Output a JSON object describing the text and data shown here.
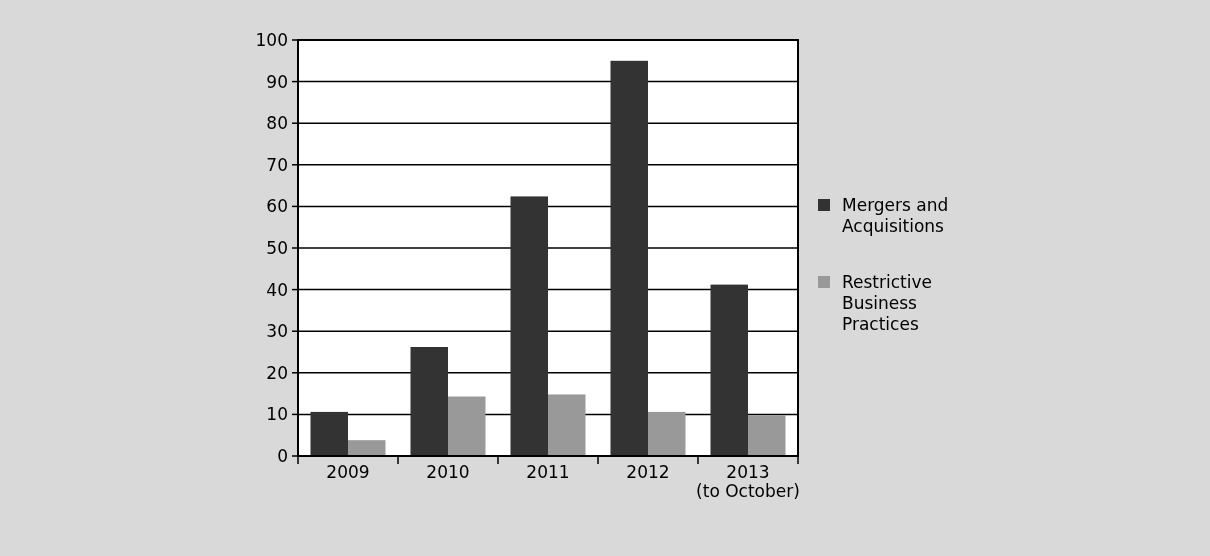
{
  "chart_data": {
    "type": "bar",
    "categories": [
      "2009",
      "2010",
      "2011",
      "2012",
      "2013\n(to October)"
    ],
    "series": [
      {
        "name": "Mergers and Acquisitions",
        "color": "#333333",
        "values": [
          10.6,
          26.2,
          62.4,
          95,
          41.2
        ]
      },
      {
        "name": "Restrictive Business Practices",
        "color": "#999999",
        "values": [
          3.8,
          14.3,
          14.8,
          10.6,
          9.8
        ]
      }
    ],
    "ylim": [
      0,
      100
    ],
    "yticks": [
      0,
      10,
      20,
      30,
      40,
      50,
      60,
      70,
      80,
      90,
      100
    ],
    "grid": "y",
    "legend": "right"
  }
}
